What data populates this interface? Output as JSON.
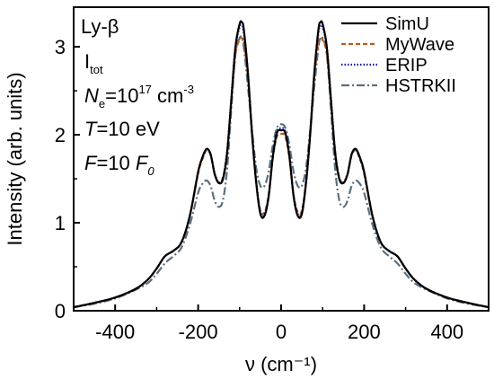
{
  "chart_data": {
    "type": "line",
    "xlabel": "ν (cm⁻¹)",
    "ylabel": "Intensity (arb. units)",
    "xlim": [
      -500,
      500
    ],
    "ylim": [
      0,
      3.45
    ],
    "x_ticks": [
      -400,
      -200,
      0,
      200,
      400
    ],
    "y_ticks": [
      0,
      1,
      2,
      3
    ],
    "annotations": {
      "line": "Ly-β",
      "mode": "I",
      "mode_sub": "tot",
      "density_var": "N",
      "density_sub": "e",
      "density_value": "=10",
      "density_exp": "17",
      "density_unit": " cm",
      "density_unit_exp": "-3",
      "temp_var": "T",
      "temp_value": "=10 eV",
      "field_var": "F",
      "field_value": "=10 ",
      "field_unit": "F",
      "field_unit_sub": "0"
    },
    "legend_position": "top-right",
    "series": [
      {
        "name": "SimU",
        "color": "#000000",
        "style": "solid",
        "x": [
          -500,
          -450,
          -400,
          -350,
          -320,
          -300,
          -280,
          -260,
          -240,
          -220,
          -200,
          -190,
          -180,
          -170,
          -160,
          -150,
          -140,
          -130,
          -120,
          -110,
          -100,
          -95,
          -90,
          -80,
          -70,
          -60,
          -50,
          -40,
          -30,
          -20,
          -10,
          0,
          10,
          20,
          30,
          40,
          50,
          60,
          70,
          80,
          90,
          95,
          100,
          110,
          120,
          130,
          140,
          150,
          160,
          170,
          180,
          190,
          200,
          220,
          240,
          260,
          280,
          300,
          320,
          350,
          400,
          450,
          500
        ],
        "y": [
          0.04,
          0.09,
          0.15,
          0.25,
          0.36,
          0.48,
          0.62,
          0.68,
          0.78,
          1.08,
          1.58,
          1.74,
          1.84,
          1.78,
          1.55,
          1.45,
          1.5,
          1.8,
          2.4,
          3.0,
          3.26,
          3.28,
          3.2,
          2.7,
          2.0,
          1.45,
          1.1,
          1.08,
          1.3,
          1.75,
          2.02,
          2.05,
          2.02,
          1.75,
          1.3,
          1.08,
          1.1,
          1.45,
          2.0,
          2.7,
          3.2,
          3.28,
          3.26,
          3.0,
          2.4,
          1.8,
          1.5,
          1.45,
          1.55,
          1.78,
          1.84,
          1.74,
          1.58,
          1.08,
          0.78,
          0.68,
          0.62,
          0.48,
          0.36,
          0.25,
          0.15,
          0.09,
          0.04
        ]
      },
      {
        "name": "MyWave",
        "color": "#b85c1e",
        "style": "dashed",
        "x": [
          -500,
          -450,
          -400,
          -350,
          -320,
          -300,
          -280,
          -260,
          -240,
          -220,
          -200,
          -190,
          -180,
          -170,
          -160,
          -150,
          -140,
          -130,
          -120,
          -110,
          -100,
          -95,
          -90,
          -80,
          -70,
          -60,
          -50,
          -40,
          -30,
          -20,
          -10,
          0,
          10,
          20,
          30,
          40,
          50,
          60,
          70,
          80,
          90,
          95,
          100,
          110,
          120,
          130,
          140,
          150,
          160,
          170,
          180,
          190,
          200,
          220,
          240,
          260,
          280,
          300,
          320,
          350,
          400,
          450,
          500
        ],
        "y": [
          0.04,
          0.09,
          0.15,
          0.25,
          0.36,
          0.48,
          0.62,
          0.68,
          0.78,
          1.08,
          1.56,
          1.72,
          1.82,
          1.77,
          1.55,
          1.46,
          1.52,
          1.82,
          2.38,
          2.92,
          3.08,
          3.1,
          3.04,
          2.65,
          2.0,
          1.47,
          1.14,
          1.12,
          1.32,
          1.74,
          1.98,
          2.01,
          1.98,
          1.74,
          1.32,
          1.12,
          1.14,
          1.47,
          2.0,
          2.65,
          3.04,
          3.1,
          3.08,
          2.92,
          2.38,
          1.82,
          1.52,
          1.46,
          1.55,
          1.77,
          1.82,
          1.72,
          1.56,
          1.08,
          0.78,
          0.68,
          0.62,
          0.48,
          0.36,
          0.25,
          0.15,
          0.09,
          0.04
        ]
      },
      {
        "name": "ERIP",
        "color": "#1a1aa6",
        "style": "dotted",
        "x": [
          -500,
          -450,
          -400,
          -350,
          -320,
          -300,
          -280,
          -260,
          -240,
          -220,
          -200,
          -190,
          -180,
          -170,
          -160,
          -150,
          -140,
          -130,
          -120,
          -110,
          -100,
          -95,
          -90,
          -80,
          -70,
          -60,
          -50,
          -40,
          -30,
          -20,
          -10,
          0,
          10,
          20,
          30,
          40,
          50,
          60,
          70,
          80,
          90,
          95,
          100,
          110,
          120,
          130,
          140,
          150,
          160,
          170,
          180,
          190,
          200,
          220,
          240,
          260,
          280,
          300,
          320,
          350,
          400,
          450,
          500
        ],
        "y": [
          0.04,
          0.09,
          0.15,
          0.25,
          0.36,
          0.48,
          0.62,
          0.68,
          0.78,
          1.08,
          1.57,
          1.73,
          1.83,
          1.78,
          1.56,
          1.46,
          1.51,
          1.82,
          2.42,
          3.0,
          3.22,
          3.24,
          3.16,
          2.7,
          2.02,
          1.46,
          1.12,
          1.1,
          1.31,
          1.76,
          2.04,
          2.07,
          2.04,
          1.76,
          1.31,
          1.1,
          1.12,
          1.46,
          2.02,
          2.7,
          3.16,
          3.24,
          3.22,
          3.0,
          2.42,
          1.82,
          1.51,
          1.46,
          1.56,
          1.78,
          1.83,
          1.73,
          1.57,
          1.08,
          0.78,
          0.68,
          0.62,
          0.48,
          0.36,
          0.25,
          0.15,
          0.09,
          0.04
        ]
      },
      {
        "name": "HSTRKII",
        "color": "#5a7080",
        "style": "dashdot",
        "x": [
          -500,
          -450,
          -400,
          -350,
          -320,
          -300,
          -280,
          -260,
          -240,
          -220,
          -200,
          -190,
          -180,
          -170,
          -160,
          -150,
          -140,
          -130,
          -120,
          -110,
          -100,
          -95,
          -90,
          -80,
          -70,
          -60,
          -50,
          -40,
          -30,
          -20,
          -10,
          0,
          10,
          20,
          30,
          40,
          50,
          60,
          70,
          80,
          90,
          95,
          100,
          110,
          120,
          130,
          140,
          150,
          160,
          170,
          180,
          190,
          200,
          220,
          240,
          260,
          280,
          300,
          320,
          350,
          400,
          450,
          500
        ],
        "y": [
          0.04,
          0.08,
          0.14,
          0.24,
          0.32,
          0.42,
          0.54,
          0.62,
          0.72,
          0.98,
          1.34,
          1.44,
          1.48,
          1.42,
          1.25,
          1.18,
          1.26,
          1.62,
          2.3,
          2.92,
          3.1,
          3.1,
          3.0,
          2.55,
          2.05,
          1.62,
          1.42,
          1.42,
          1.58,
          1.88,
          2.08,
          2.12,
          2.08,
          1.88,
          1.58,
          1.42,
          1.42,
          1.62,
          2.05,
          2.55,
          3.0,
          3.1,
          3.1,
          2.92,
          2.3,
          1.62,
          1.26,
          1.18,
          1.25,
          1.42,
          1.48,
          1.44,
          1.34,
          0.98,
          0.72,
          0.62,
          0.54,
          0.42,
          0.32,
          0.24,
          0.14,
          0.08,
          0.04
        ]
      }
    ]
  }
}
